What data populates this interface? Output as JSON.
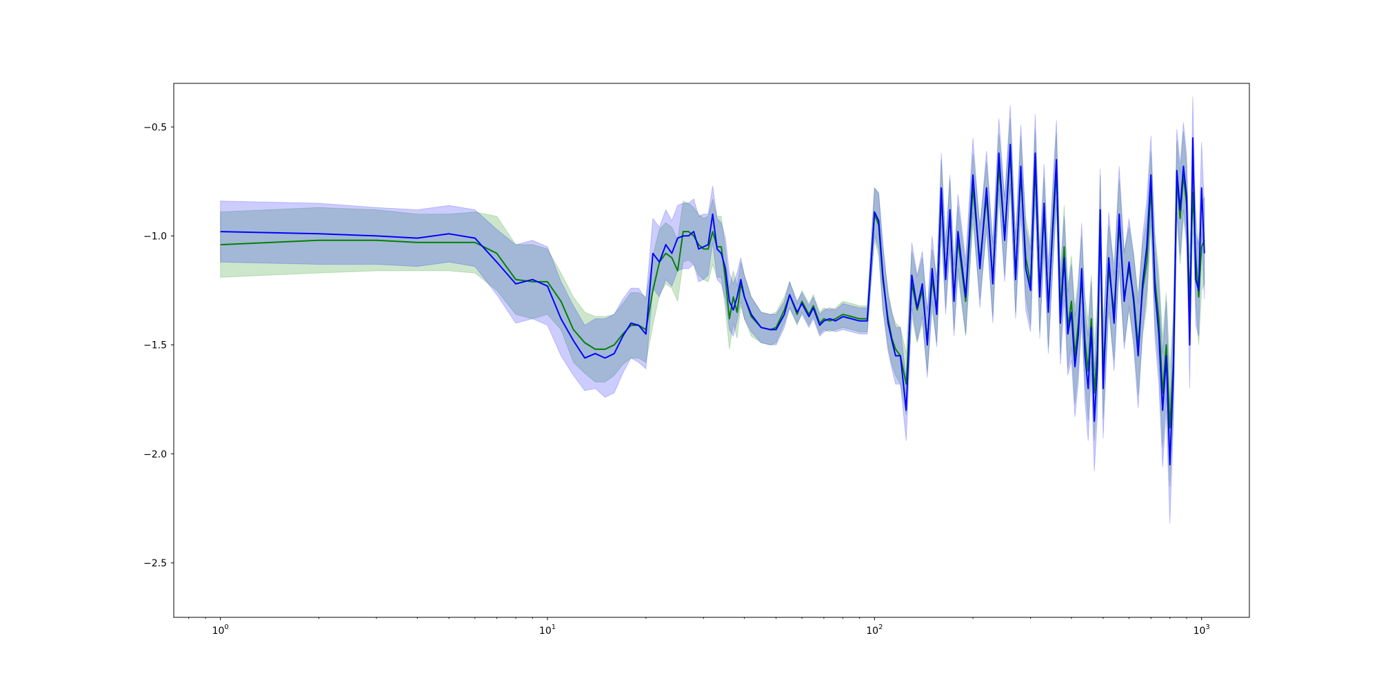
{
  "chart_data": {
    "type": "line",
    "title": "",
    "xlabel": "",
    "ylabel": "",
    "x_scale": "log",
    "xlim": [
      0.72,
      1400
    ],
    "ylim": [
      -2.75,
      -0.3
    ],
    "grid": false,
    "legend": "none",
    "x_ticks": [
      {
        "value": 1,
        "base": "10",
        "exp": "0"
      },
      {
        "value": 10,
        "base": "10",
        "exp": "1"
      },
      {
        "value": 100,
        "base": "10",
        "exp": "2"
      },
      {
        "value": 1000,
        "base": "10",
        "exp": "3"
      }
    ],
    "y_ticks": [
      {
        "value": -0.5,
        "label": "−0.5"
      },
      {
        "value": -1.0,
        "label": "−1.0"
      },
      {
        "value": -1.5,
        "label": "−1.5"
      },
      {
        "value": -2.0,
        "label": "−2.0"
      },
      {
        "value": -2.5,
        "label": "−2.5"
      }
    ],
    "series": [
      {
        "color": "#008000",
        "band_color": "#008000",
        "band_opacity": 0.2,
        "x": [
          1,
          2,
          3,
          4,
          5,
          6,
          7,
          8,
          9,
          10,
          11,
          12,
          13,
          14,
          15,
          16,
          17,
          18,
          19,
          20,
          21,
          22,
          23,
          24,
          25,
          26,
          27,
          28,
          29,
          30,
          31,
          32,
          33,
          34,
          35,
          36,
          37,
          38,
          39,
          40,
          42,
          45,
          48,
          50,
          53,
          55,
          58,
          60,
          63,
          65,
          68,
          70,
          73,
          76,
          80,
          85,
          90,
          95,
          100,
          103,
          106,
          110,
          113,
          116,
          120,
          125,
          130,
          135,
          140,
          145,
          150,
          155,
          160,
          165,
          170,
          175,
          180,
          190,
          200,
          210,
          220,
          230,
          240,
          250,
          260,
          270,
          280,
          290,
          300,
          310,
          320,
          330,
          340,
          350,
          360,
          370,
          380,
          390,
          400,
          410,
          420,
          430,
          440,
          450,
          460,
          470,
          480,
          490,
          500,
          520,
          540,
          560,
          580,
          600,
          620,
          640,
          660,
          680,
          700,
          720,
          740,
          760,
          780,
          800,
          820,
          840,
          860,
          880,
          900,
          920,
          940,
          960,
          980,
          1000,
          1020
        ],
        "y": [
          -1.04,
          -1.02,
          -1.02,
          -1.03,
          -1.03,
          -1.03,
          -1.08,
          -1.2,
          -1.21,
          -1.21,
          -1.3,
          -1.43,
          -1.49,
          -1.52,
          -1.52,
          -1.5,
          -1.45,
          -1.41,
          -1.41,
          -1.43,
          -1.25,
          -1.12,
          -1.08,
          -1.1,
          -1.16,
          -0.98,
          -0.98,
          -1.0,
          -1.04,
          -1.06,
          -1.06,
          -0.98,
          -1.05,
          -1.05,
          -1.2,
          -1.38,
          -1.28,
          -1.35,
          -1.22,
          -1.28,
          -1.37,
          -1.42,
          -1.43,
          -1.42,
          -1.34,
          -1.27,
          -1.36,
          -1.3,
          -1.36,
          -1.32,
          -1.4,
          -1.38,
          -1.39,
          -1.38,
          -1.36,
          -1.37,
          -1.38,
          -1.38,
          -0.9,
          -0.95,
          -1.2,
          -1.38,
          -1.47,
          -1.52,
          -1.55,
          -1.68,
          -1.22,
          -1.34,
          -1.25,
          -1.48,
          -1.2,
          -1.34,
          -0.82,
          -1.18,
          -0.9,
          -1.28,
          -1.02,
          -1.3,
          -0.78,
          -1.12,
          -0.82,
          -1.2,
          -0.68,
          -1.0,
          -0.62,
          -1.18,
          -0.72,
          -1.1,
          -1.22,
          -0.68,
          -1.25,
          -0.9,
          -1.32,
          -1.0,
          -0.7,
          -1.35,
          -1.05,
          -1.42,
          -1.3,
          -1.55,
          -1.4,
          -1.2,
          -1.48,
          -1.62,
          -1.38,
          -1.72,
          -1.52,
          -0.9,
          -1.62,
          -1.15,
          -1.35,
          -0.95,
          -1.28,
          -1.15,
          -1.28,
          -1.5,
          -1.25,
          -1.12,
          -0.78,
          -1.2,
          -1.38,
          -1.72,
          -1.5,
          -1.88,
          -1.58,
          -0.74,
          -0.92,
          -0.72,
          -0.86,
          -1.3,
          -0.8,
          -1.1,
          -1.28,
          -1.05,
          -1.02
        ],
        "lower": [
          -1.19,
          -1.17,
          -1.16,
          -1.16,
          -1.16,
          -1.17,
          -1.25,
          -1.36,
          -1.38,
          -1.36,
          -1.43,
          -1.58,
          -1.63,
          -1.67,
          -1.67,
          -1.64,
          -1.59,
          -1.56,
          -1.56,
          -1.58,
          -1.41,
          -1.27,
          -1.22,
          -1.24,
          -1.3,
          -1.12,
          -1.11,
          -1.13,
          -1.18,
          -1.2,
          -1.21,
          -1.13,
          -1.19,
          -1.19,
          -1.34,
          -1.52,
          -1.4,
          -1.47,
          -1.32,
          -1.38,
          -1.46,
          -1.49,
          -1.5,
          -1.49,
          -1.4,
          -1.33,
          -1.41,
          -1.35,
          -1.41,
          -1.37,
          -1.45,
          -1.43,
          -1.44,
          -1.43,
          -1.42,
          -1.43,
          -1.44,
          -1.44,
          -1.02,
          -1.09,
          -1.34,
          -1.51,
          -1.59,
          -1.64,
          -1.68,
          -1.82,
          -1.37,
          -1.49,
          -1.4,
          -1.62,
          -1.34,
          -1.49,
          -0.99,
          -1.33,
          -1.06,
          -1.43,
          -1.18,
          -1.46,
          -0.94,
          -1.29,
          -0.98,
          -1.37,
          -0.83,
          -1.18,
          -0.78,
          -1.35,
          -0.9,
          -1.28,
          -1.41,
          -0.85,
          -1.44,
          -1.07,
          -1.51,
          -1.18,
          -0.87,
          -1.54,
          -1.24,
          -1.61,
          -1.51,
          -1.77,
          -1.61,
          -1.4,
          -1.68,
          -1.85,
          -1.58,
          -1.94,
          -1.74,
          -1.08,
          -1.84,
          -1.35,
          -1.57,
          -1.16,
          -1.49,
          -1.34,
          -1.48,
          -1.73,
          -1.46,
          -1.32,
          -0.95,
          -1.41,
          -1.6,
          -1.97,
          -1.74,
          -2.15,
          -1.81,
          -0.92,
          -1.13,
          -0.92,
          -1.04,
          -1.5,
          -0.98,
          -1.31,
          -1.5,
          -1.25,
          -1.22
        ],
        "upper": [
          -0.89,
          -0.87,
          -0.88,
          -0.9,
          -0.9,
          -0.89,
          -0.91,
          -1.04,
          -1.04,
          -1.06,
          -1.17,
          -1.28,
          -1.35,
          -1.37,
          -1.37,
          -1.36,
          -1.31,
          -1.26,
          -1.26,
          -1.28,
          -1.09,
          -0.97,
          -0.94,
          -0.96,
          -1.02,
          -0.84,
          -0.85,
          -0.87,
          -0.9,
          -0.92,
          -0.91,
          -0.83,
          -0.91,
          -0.91,
          -1.06,
          -1.24,
          -1.16,
          -1.23,
          -1.12,
          -1.18,
          -1.28,
          -1.35,
          -1.36,
          -1.35,
          -1.28,
          -1.21,
          -1.31,
          -1.25,
          -1.31,
          -1.27,
          -1.35,
          -1.33,
          -1.34,
          -1.33,
          -1.3,
          -1.31,
          -1.32,
          -1.32,
          -0.78,
          -0.81,
          -1.06,
          -1.25,
          -1.35,
          -1.4,
          -1.42,
          -1.54,
          -1.07,
          -1.19,
          -1.1,
          -1.34,
          -1.06,
          -1.19,
          -0.65,
          -1.03,
          -0.74,
          -1.13,
          -0.86,
          -1.14,
          -0.62,
          -0.95,
          -0.66,
          -1.03,
          -0.53,
          -0.82,
          -0.46,
          -1.01,
          -0.54,
          -0.92,
          -1.03,
          -0.51,
          -1.06,
          -0.73,
          -1.13,
          -0.82,
          -0.53,
          -1.16,
          -0.86,
          -1.23,
          -1.09,
          -1.33,
          -1.19,
          -1.0,
          -1.28,
          -1.39,
          -1.18,
          -1.5,
          -1.3,
          -0.72,
          -1.4,
          -0.95,
          -1.13,
          -0.74,
          -1.07,
          -0.96,
          -1.08,
          -1.27,
          -1.04,
          -0.92,
          -0.61,
          -0.99,
          -1.16,
          -1.47,
          -1.26,
          -1.61,
          -1.35,
          -0.56,
          -0.71,
          -0.52,
          -0.68,
          -1.1,
          -0.62,
          -0.89,
          -1.06,
          -0.85,
          -0.82
        ]
      },
      {
        "color": "#0000ff",
        "band_color": "#0000ff",
        "band_opacity": 0.2,
        "x": [
          1,
          2,
          3,
          4,
          5,
          6,
          7,
          8,
          9,
          10,
          11,
          12,
          13,
          14,
          15,
          16,
          17,
          18,
          19,
          20,
          21,
          22,
          23,
          24,
          25,
          26,
          27,
          28,
          29,
          30,
          31,
          32,
          33,
          34,
          35,
          36,
          37,
          38,
          39,
          40,
          42,
          45,
          48,
          50,
          53,
          55,
          58,
          60,
          63,
          65,
          68,
          70,
          73,
          76,
          80,
          85,
          90,
          95,
          100,
          103,
          106,
          110,
          113,
          116,
          120,
          125,
          130,
          135,
          140,
          145,
          150,
          155,
          160,
          165,
          170,
          175,
          180,
          190,
          200,
          210,
          220,
          230,
          240,
          250,
          260,
          270,
          280,
          290,
          300,
          310,
          320,
          330,
          340,
          350,
          360,
          370,
          380,
          390,
          400,
          410,
          420,
          430,
          440,
          450,
          460,
          470,
          480,
          490,
          500,
          520,
          540,
          560,
          580,
          600,
          620,
          640,
          660,
          680,
          700,
          720,
          740,
          760,
          780,
          800,
          820,
          840,
          860,
          880,
          900,
          920,
          940,
          960,
          980,
          1000,
          1020
        ],
        "y": [
          -0.98,
          -0.99,
          -1.0,
          -1.01,
          -0.99,
          -1.01,
          -1.12,
          -1.22,
          -1.2,
          -1.23,
          -1.38,
          -1.48,
          -1.56,
          -1.54,
          -1.56,
          -1.54,
          -1.46,
          -1.4,
          -1.41,
          -1.45,
          -1.08,
          -1.12,
          -1.04,
          -1.08,
          -1.01,
          -1.0,
          -1.0,
          -0.98,
          -1.06,
          -1.05,
          -1.04,
          -0.9,
          -1.06,
          -1.08,
          -1.15,
          -1.3,
          -1.34,
          -1.28,
          -1.2,
          -1.28,
          -1.36,
          -1.42,
          -1.43,
          -1.43,
          -1.36,
          -1.27,
          -1.35,
          -1.31,
          -1.37,
          -1.33,
          -1.41,
          -1.39,
          -1.38,
          -1.39,
          -1.37,
          -1.38,
          -1.39,
          -1.39,
          -0.89,
          -0.93,
          -1.18,
          -1.4,
          -1.48,
          -1.55,
          -1.55,
          -1.8,
          -1.18,
          -1.33,
          -1.22,
          -1.5,
          -1.15,
          -1.36,
          -0.78,
          -1.2,
          -0.88,
          -1.3,
          -0.98,
          -1.28,
          -0.72,
          -1.15,
          -0.78,
          -1.22,
          -0.62,
          -1.02,
          -0.58,
          -1.2,
          -0.68,
          -1.15,
          -1.25,
          -0.62,
          -1.28,
          -0.85,
          -1.35,
          -0.98,
          -0.65,
          -1.4,
          -1.1,
          -1.45,
          -1.35,
          -1.6,
          -1.45,
          -1.15,
          -1.55,
          -1.7,
          -1.42,
          -1.85,
          -1.6,
          -0.88,
          -1.7,
          -1.1,
          -1.4,
          -0.9,
          -1.3,
          -1.12,
          -1.3,
          -1.55,
          -1.22,
          -1.05,
          -0.72,
          -1.25,
          -1.45,
          -1.8,
          -1.55,
          -2.05,
          -1.62,
          -0.7,
          -0.88,
          -0.68,
          -0.82,
          -1.5,
          -0.55,
          -1.2,
          -1.25,
          -0.78,
          -1.08
        ],
        "lower": [
          -1.12,
          -1.13,
          -1.13,
          -1.14,
          -1.12,
          -1.14,
          -1.27,
          -1.4,
          -1.38,
          -1.41,
          -1.55,
          -1.64,
          -1.71,
          -1.7,
          -1.74,
          -1.72,
          -1.63,
          -1.56,
          -1.58,
          -1.61,
          -1.24,
          -1.28,
          -1.2,
          -1.23,
          -1.16,
          -1.15,
          -1.15,
          -1.13,
          -1.21,
          -1.2,
          -1.18,
          -1.03,
          -1.2,
          -1.22,
          -1.29,
          -1.43,
          -1.46,
          -1.39,
          -1.3,
          -1.38,
          -1.44,
          -1.49,
          -1.5,
          -1.5,
          -1.42,
          -1.33,
          -1.4,
          -1.36,
          -1.42,
          -1.38,
          -1.46,
          -1.44,
          -1.43,
          -1.44,
          -1.43,
          -1.44,
          -1.45,
          -1.45,
          -1.0,
          -1.06,
          -1.33,
          -1.53,
          -1.61,
          -1.68,
          -1.68,
          -1.94,
          -1.33,
          -1.48,
          -1.37,
          -1.65,
          -1.3,
          -1.51,
          -0.94,
          -1.36,
          -1.04,
          -1.46,
          -1.15,
          -1.45,
          -0.89,
          -1.33,
          -0.95,
          -1.4,
          -0.78,
          -1.21,
          -0.76,
          -1.38,
          -0.87,
          -1.34,
          -1.44,
          -0.8,
          -1.47,
          -1.03,
          -1.54,
          -1.17,
          -0.83,
          -1.59,
          -1.29,
          -1.64,
          -1.57,
          -1.83,
          -1.67,
          -1.36,
          -1.76,
          -1.94,
          -1.63,
          -2.08,
          -1.83,
          -1.07,
          -1.93,
          -1.31,
          -1.62,
          -1.12,
          -1.52,
          -1.32,
          -1.51,
          -1.79,
          -1.44,
          -1.26,
          -0.9,
          -1.47,
          -1.68,
          -2.06,
          -1.8,
          -2.32,
          -1.86,
          -0.89,
          -1.09,
          -0.88,
          -1.01,
          -1.7,
          -0.74,
          -1.41,
          -1.46,
          -0.99,
          -1.29
        ],
        "upper": [
          -0.84,
          -0.85,
          -0.87,
          -0.88,
          -0.86,
          -0.88,
          -0.97,
          -1.04,
          -1.02,
          -1.05,
          -1.21,
          -1.32,
          -1.41,
          -1.38,
          -1.38,
          -1.36,
          -1.29,
          -1.24,
          -1.24,
          -1.29,
          -0.92,
          -0.96,
          -0.88,
          -0.93,
          -0.86,
          -0.85,
          -0.85,
          -0.83,
          -0.91,
          -0.9,
          -0.9,
          -0.77,
          -0.92,
          -0.94,
          -1.01,
          -1.17,
          -1.22,
          -1.17,
          -1.1,
          -1.18,
          -1.28,
          -1.35,
          -1.36,
          -1.36,
          -1.3,
          -1.21,
          -1.3,
          -1.26,
          -1.32,
          -1.28,
          -1.36,
          -1.34,
          -1.33,
          -1.34,
          -1.31,
          -1.32,
          -1.33,
          -1.33,
          -0.78,
          -0.8,
          -1.03,
          -1.27,
          -1.35,
          -1.42,
          -1.42,
          -1.66,
          -1.03,
          -1.18,
          -1.07,
          -1.35,
          -1.0,
          -1.21,
          -0.62,
          -1.04,
          -0.72,
          -1.14,
          -0.81,
          -1.11,
          -0.55,
          -0.97,
          -0.61,
          -1.04,
          -0.46,
          -0.83,
          -0.4,
          -1.02,
          -0.49,
          -0.96,
          -1.06,
          -0.44,
          -1.09,
          -0.67,
          -1.16,
          -0.79,
          -0.47,
          -1.21,
          -0.91,
          -1.26,
          -1.13,
          -1.37,
          -1.23,
          -0.94,
          -1.34,
          -1.46,
          -1.21,
          -1.62,
          -1.37,
          -0.69,
          -1.47,
          -0.89,
          -1.18,
          -0.68,
          -1.08,
          -0.92,
          -1.09,
          -1.31,
          -1.0,
          -0.84,
          -0.54,
          -1.03,
          -1.22,
          -1.54,
          -1.3,
          -1.78,
          -1.38,
          -0.51,
          -0.67,
          -0.48,
          -0.63,
          -1.3,
          -0.36,
          -0.99,
          -1.04,
          -0.57,
          -0.87
        ]
      }
    ]
  }
}
